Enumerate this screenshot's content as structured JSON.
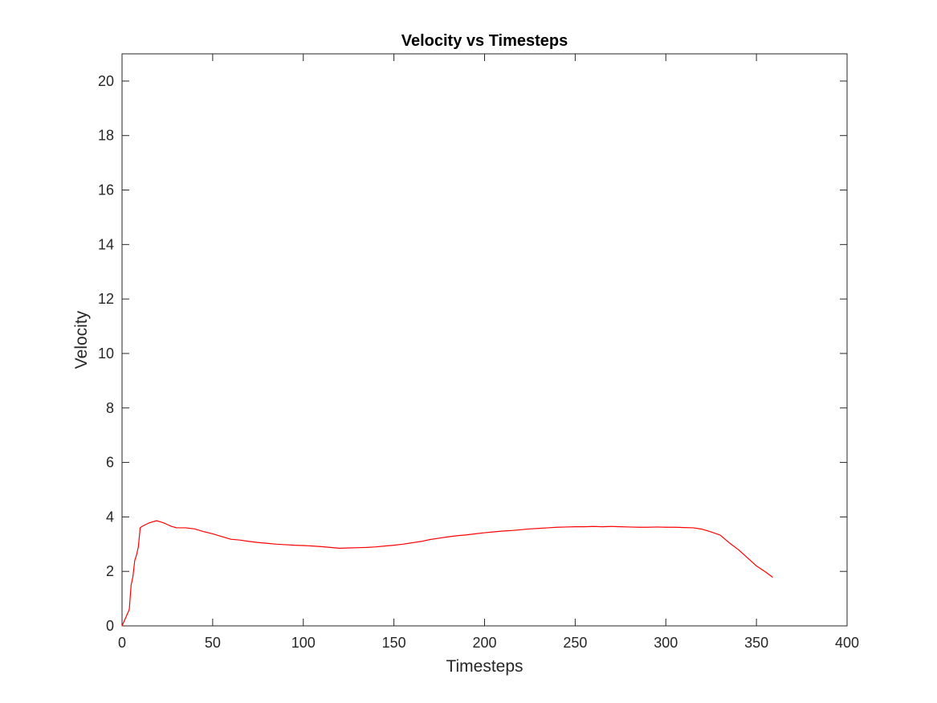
{
  "chart_data": {
    "type": "line",
    "title": "Velocity vs Timesteps",
    "xlabel": "Timesteps",
    "ylabel": "Velocity",
    "xlim": [
      0,
      400
    ],
    "ylim": [
      0,
      21
    ],
    "xticks": [
      "0",
      "50",
      "100",
      "150",
      "200",
      "250",
      "300",
      "350",
      "400"
    ],
    "yticks": [
      "0",
      "2",
      "4",
      "6",
      "8",
      "10",
      "12",
      "14",
      "16",
      "18",
      "20"
    ],
    "grid": false,
    "legend": "none",
    "colors": {
      "series": "#ff0000",
      "axes": "#262626",
      "background": "#ffffff"
    },
    "series": [
      {
        "x": [
          0,
          2,
          4,
          5,
          6,
          7,
          8,
          9,
          10,
          11,
          13,
          15,
          17,
          19,
          21,
          23,
          25,
          27,
          30,
          35,
          40,
          45,
          50,
          55,
          60,
          65,
          70,
          75,
          80,
          85,
          90,
          95,
          100,
          105,
          110,
          115,
          120,
          125,
          130,
          135,
          140,
          145,
          150,
          155,
          160,
          165,
          170,
          175,
          180,
          185,
          190,
          195,
          200,
          205,
          210,
          215,
          220,
          225,
          230,
          235,
          240,
          245,
          250,
          255,
          260,
          265,
          270,
          275,
          280,
          285,
          290,
          295,
          300,
          305,
          310,
          315,
          320,
          325,
          330,
          335,
          340,
          345,
          350,
          355,
          359
        ],
        "y": [
          0,
          0.3,
          0.6,
          1.5,
          1.8,
          2.4,
          2.6,
          2.9,
          3.6,
          3.65,
          3.72,
          3.78,
          3.82,
          3.86,
          3.82,
          3.78,
          3.72,
          3.66,
          3.6,
          3.6,
          3.56,
          3.46,
          3.38,
          3.28,
          3.18,
          3.15,
          3.1,
          3.06,
          3.03,
          3.0,
          2.98,
          2.96,
          2.95,
          2.93,
          2.91,
          2.88,
          2.85,
          2.86,
          2.87,
          2.88,
          2.9,
          2.93,
          2.96,
          3.0,
          3.05,
          3.1,
          3.17,
          3.22,
          3.27,
          3.31,
          3.34,
          3.38,
          3.42,
          3.45,
          3.48,
          3.5,
          3.53,
          3.56,
          3.58,
          3.6,
          3.62,
          3.63,
          3.64,
          3.64,
          3.65,
          3.64,
          3.65,
          3.64,
          3.63,
          3.62,
          3.62,
          3.63,
          3.62,
          3.62,
          3.61,
          3.6,
          3.55,
          3.45,
          3.33,
          3.05,
          2.8,
          2.5,
          2.2,
          1.98,
          1.78
        ]
      }
    ]
  }
}
